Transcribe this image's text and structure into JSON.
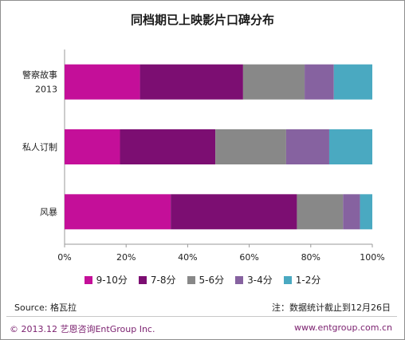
{
  "chart_data": {
    "type": "bar",
    "orientation": "horizontal",
    "stacked": true,
    "title": "同档期已上映影片口碑分布",
    "categories": [
      [
        "警察故事",
        "2013"
      ],
      [
        "私人订制"
      ],
      [
        "风暴"
      ]
    ],
    "series": [
      {
        "name": "9-10分",
        "color": "#c40f99",
        "values": [
          24.5,
          18,
          34.5
        ]
      },
      {
        "name": "7-8分",
        "color": "#7c0e72",
        "values": [
          33.5,
          31,
          41
        ]
      },
      {
        "name": "5-6分",
        "color": "#888888",
        "values": [
          20,
          23,
          15
        ]
      },
      {
        "name": "3-4分",
        "color": "#8662a0",
        "values": [
          9.5,
          14,
          5.5
        ]
      },
      {
        "name": "1-2分",
        "color": "#4aa9c1",
        "values": [
          12.5,
          14,
          4
        ]
      }
    ],
    "xlim": [
      0,
      100
    ],
    "xticks": [
      "0%",
      "20%",
      "40%",
      "60%",
      "80%",
      "100%"
    ],
    "grid": false,
    "legend_position": "bottom"
  },
  "footer": {
    "source": "Source: 格瓦拉",
    "note": "注：数据统计截止到12月26日",
    "copyright": "© 2013.12 艺恩咨询EntGroup Inc.",
    "website": "www.entgroup.com.cn"
  }
}
